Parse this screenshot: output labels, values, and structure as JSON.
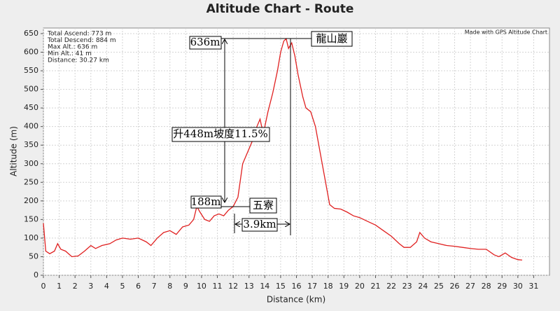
{
  "chart_data": {
    "type": "line",
    "title": "Altitude Chart - Route",
    "x_label": "Distance (km)",
    "y_label": "Altitude (m)",
    "stats": [
      "Total Ascend: 773 m",
      "Total Descend: 884 m",
      "Max Alt.: 636 m",
      "Min Alt.: 41 m",
      "Distance: 30.27 km"
    ],
    "credit": "Made with GPS Altitude Chart",
    "annotations": [
      "636m",
      "龍山巖",
      "升448m坡度11.5%",
      "188m",
      "五寮",
      "3.9km"
    ],
    "x": [
      0,
      0.15,
      0.4,
      0.7,
      0.9,
      1.1,
      1.4,
      1.8,
      2.2,
      2.6,
      3.0,
      3.3,
      3.7,
      4.2,
      4.6,
      5.0,
      5.5,
      6.0,
      6.5,
      6.8,
      7.2,
      7.6,
      8.0,
      8.4,
      8.8,
      9.2,
      9.5,
      9.7,
      9.9,
      10.2,
      10.5,
      10.8,
      11.1,
      11.4,
      11.7,
      12.0,
      12.3,
      12.6,
      12.9,
      13.2,
      13.5,
      13.7,
      13.9,
      14.2,
      14.5,
      14.8,
      15.0,
      15.2,
      15.35,
      15.5,
      15.7,
      15.9,
      16.1,
      16.4,
      16.6,
      16.9,
      17.2,
      17.5,
      17.8,
      18.1,
      18.4,
      18.8,
      19.2,
      19.6,
      20.0,
      20.5,
      21.0,
      21.5,
      22.0,
      22.5,
      22.8,
      23.2,
      23.6,
      23.8,
      24.1,
      24.5,
      25,
      25.5,
      26,
      26.5,
      27,
      27.5,
      28,
      28.5,
      28.8,
      29.2,
      29.6,
      30.0,
      30.27
    ],
    "series": [
      {
        "name": "Altitude",
        "color": "#e02020",
        "values": [
          140,
          65,
          58,
          65,
          85,
          70,
          65,
          50,
          52,
          65,
          80,
          72,
          80,
          85,
          95,
          100,
          97,
          100,
          90,
          80,
          100,
          115,
          120,
          110,
          130,
          135,
          150,
          185,
          170,
          150,
          145,
          160,
          165,
          160,
          175,
          185,
          210,
          300,
          330,
          360,
          400,
          420,
          380,
          440,
          490,
          550,
          600,
          630,
          636,
          610,
          625,
          590,
          540,
          480,
          450,
          440,
          400,
          330,
          260,
          190,
          180,
          178,
          170,
          160,
          155,
          145,
          135,
          120,
          105,
          85,
          75,
          75,
          90,
          115,
          100,
          90,
          85,
          80,
          78,
          75,
          72,
          70,
          70,
          55,
          50,
          60,
          48,
          42,
          41
        ]
      }
    ],
    "xlim": [
      0,
      32
    ],
    "ylim": [
      0,
      665
    ],
    "xticks": [
      0,
      1,
      2,
      3,
      4,
      5,
      6,
      7,
      8,
      9,
      10,
      11,
      12,
      13,
      14,
      15,
      16,
      17,
      18,
      19,
      20,
      21,
      22,
      23,
      24,
      25,
      26,
      27,
      28,
      29,
      30,
      31
    ],
    "yticks": [
      0,
      50,
      100,
      150,
      200,
      250,
      300,
      350,
      400,
      450,
      500,
      550,
      600,
      650
    ],
    "grid": true
  }
}
